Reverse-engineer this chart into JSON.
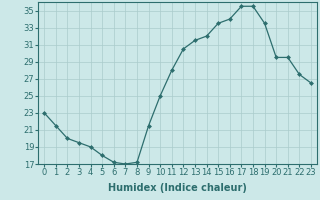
{
  "x": [
    0,
    1,
    2,
    3,
    4,
    5,
    6,
    7,
    8,
    9,
    10,
    11,
    12,
    13,
    14,
    15,
    16,
    17,
    18,
    19,
    20,
    21,
    22,
    23
  ],
  "y": [
    23,
    21.5,
    20,
    19.5,
    19,
    18,
    17.2,
    17,
    17.2,
    21.5,
    25,
    28,
    30.5,
    31.5,
    32,
    33.5,
    34,
    35.5,
    35.5,
    33.5,
    29.5,
    29.5,
    27.5,
    26.5
  ],
  "line_color": "#2d6e6e",
  "marker": "D",
  "marker_size": 2.5,
  "bg_color": "#cce8e8",
  "grid_color": "#aacccc",
  "xlabel": "Humidex (Indice chaleur)",
  "ylim": [
    17,
    36
  ],
  "yticks": [
    17,
    19,
    21,
    23,
    25,
    27,
    29,
    31,
    33,
    35
  ],
  "xlim": [
    -0.5,
    23.5
  ],
  "xticks": [
    0,
    1,
    2,
    3,
    4,
    5,
    6,
    7,
    8,
    9,
    10,
    11,
    12,
    13,
    14,
    15,
    16,
    17,
    18,
    19,
    20,
    21,
    22,
    23
  ],
  "xlabel_fontsize": 7,
  "tick_fontsize": 6
}
